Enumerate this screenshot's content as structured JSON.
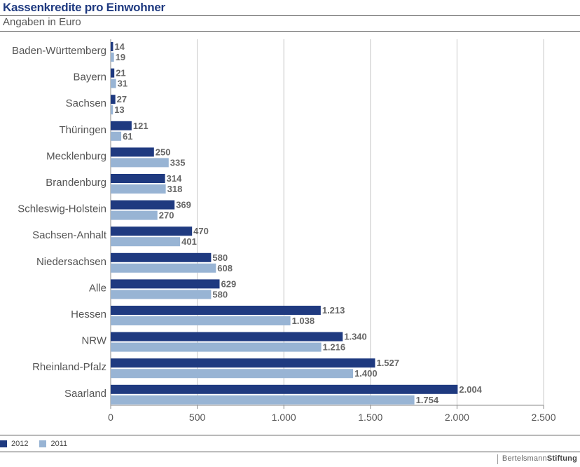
{
  "header": {
    "title": "Kassenkredite pro Einwohner",
    "subtitle": "Angaben in Euro"
  },
  "chart_data": {
    "type": "bar",
    "orientation": "horizontal",
    "title": "Kassenkredite pro Einwohner",
    "subtitle": "Angaben in Euro",
    "xlabel": "",
    "ylabel": "",
    "xlim": [
      0,
      2500
    ],
    "xticks": [
      0,
      500,
      1000,
      1500,
      2000,
      2500
    ],
    "xtick_labels": [
      "0",
      "500",
      "1.000",
      "1.500",
      "2.000",
      "2.500"
    ],
    "grid": true,
    "legend_position": "bottom-left",
    "categories": [
      "Baden-Württemberg",
      "Bayern",
      "Sachsen",
      "Thüringen",
      "Mecklenburg",
      "Brandenburg",
      "Schleswig-Holstein",
      "Sachsen-Anhalt",
      "Niedersachsen",
      "Alle",
      "Hessen",
      "NRW",
      "Rheinland-Pfalz",
      "Saarland"
    ],
    "series": [
      {
        "name": "2012",
        "color": "#1f3a80",
        "values": [
          14,
          21,
          27,
          121,
          250,
          314,
          369,
          470,
          580,
          629,
          1213,
          1340,
          1527,
          2004
        ],
        "labels": [
          "14",
          "21",
          "27",
          "121",
          "250",
          "314",
          "369",
          "470",
          "580",
          "629",
          "1.213",
          "1.340",
          "1.527",
          "2.004"
        ]
      },
      {
        "name": "2011",
        "color": "#98b4d4",
        "values": [
          19,
          31,
          13,
          61,
          335,
          318,
          270,
          401,
          608,
          580,
          1038,
          1216,
          1400,
          1754
        ],
        "labels": [
          "19",
          "31",
          "13",
          "61",
          "335",
          "318",
          "270",
          "401",
          "608",
          "580",
          "1.038",
          "1.216",
          "1.400",
          "1.754"
        ]
      }
    ]
  },
  "legend": {
    "items": [
      {
        "label": "2012",
        "color": "#1f3a80"
      },
      {
        "label": "2011",
        "color": "#98b4d4"
      }
    ]
  },
  "footer": {
    "logo_primary": "Bertelsmann",
    "logo_secondary": "Stiftung"
  }
}
